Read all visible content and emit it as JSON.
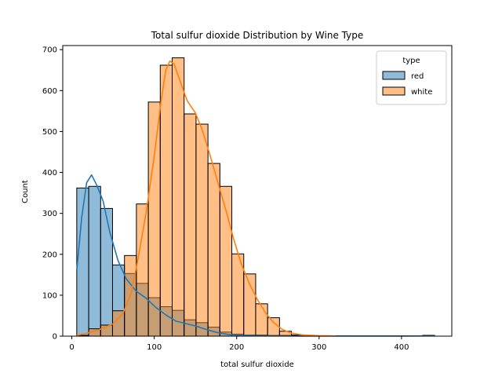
{
  "chart_data": {
    "type": "histogram",
    "title": "Total sulfur dioxide Distribution by Wine Type",
    "xlabel": "total sulfur dioxide",
    "ylabel": "Count",
    "xlim": [
      -11,
      461
    ],
    "ylim": [
      0,
      710
    ],
    "xticks": [
      0,
      100,
      200,
      300,
      400
    ],
    "yticks": [
      0,
      100,
      200,
      300,
      400,
      500,
      600,
      700
    ],
    "grid": false,
    "legend": {
      "title": "type",
      "placement": "top-right"
    },
    "bin_start": 6,
    "bin_width": 14.47,
    "series": [
      {
        "name": "red",
        "color": "#1f77b4",
        "fill": "#8fbbd9",
        "counts": [
          362,
          366,
          312,
          174,
          153,
          129,
          94,
          72,
          63,
          40,
          33,
          22,
          10,
          5,
          3,
          3,
          2,
          2,
          1,
          0,
          0,
          0,
          0,
          0,
          0,
          0,
          0,
          0,
          0,
          2
        ],
        "kde": [
          [
            6,
            160
          ],
          [
            12,
            290
          ],
          [
            18,
            375
          ],
          [
            24,
            394
          ],
          [
            30,
            370
          ],
          [
            38,
            330
          ],
          [
            46,
            255
          ],
          [
            56,
            185
          ],
          [
            66,
            140
          ],
          [
            78,
            110
          ],
          [
            90,
            93
          ],
          [
            102,
            70
          ],
          [
            114,
            52
          ],
          [
            126,
            37
          ],
          [
            138,
            31
          ],
          [
            150,
            25
          ],
          [
            162,
            17
          ],
          [
            176,
            9
          ],
          [
            190,
            4
          ],
          [
            205,
            2
          ],
          [
            225,
            1
          ],
          [
            260,
            0.5
          ],
          [
            300,
            0.3
          ],
          [
            360,
            0.3
          ],
          [
            420,
            0.5
          ],
          [
            440,
            0.5
          ]
        ]
      },
      {
        "name": "white",
        "color": "#ff7f0e",
        "fill": "#ffbf86",
        "counts": [
          2,
          18,
          27,
          62,
          197,
          323,
          572,
          662,
          680,
          543,
          518,
          422,
          366,
          201,
          152,
          79,
          45,
          12,
          3,
          2,
          1,
          1,
          1,
          0,
          0,
          0,
          0,
          0,
          0,
          0
        ],
        "kde": [
          [
            6,
            2
          ],
          [
            20,
            8
          ],
          [
            35,
            17
          ],
          [
            50,
            30
          ],
          [
            62,
            55
          ],
          [
            72,
            105
          ],
          [
            80,
            185
          ],
          [
            90,
            300
          ],
          [
            100,
            440
          ],
          [
            108,
            570
          ],
          [
            114,
            650
          ],
          [
            119,
            672
          ],
          [
            124,
            665
          ],
          [
            132,
            620
          ],
          [
            140,
            575
          ],
          [
            150,
            545
          ],
          [
            158,
            505
          ],
          [
            168,
            440
          ],
          [
            178,
            370
          ],
          [
            188,
            300
          ],
          [
            196,
            240
          ],
          [
            205,
            180
          ],
          [
            215,
            130
          ],
          [
            225,
            90
          ],
          [
            235,
            57
          ],
          [
            245,
            33
          ],
          [
            255,
            17
          ],
          [
            265,
            8
          ],
          [
            280,
            3
          ],
          [
            300,
            1
          ],
          [
            320,
            0.5
          ]
        ]
      }
    ]
  }
}
